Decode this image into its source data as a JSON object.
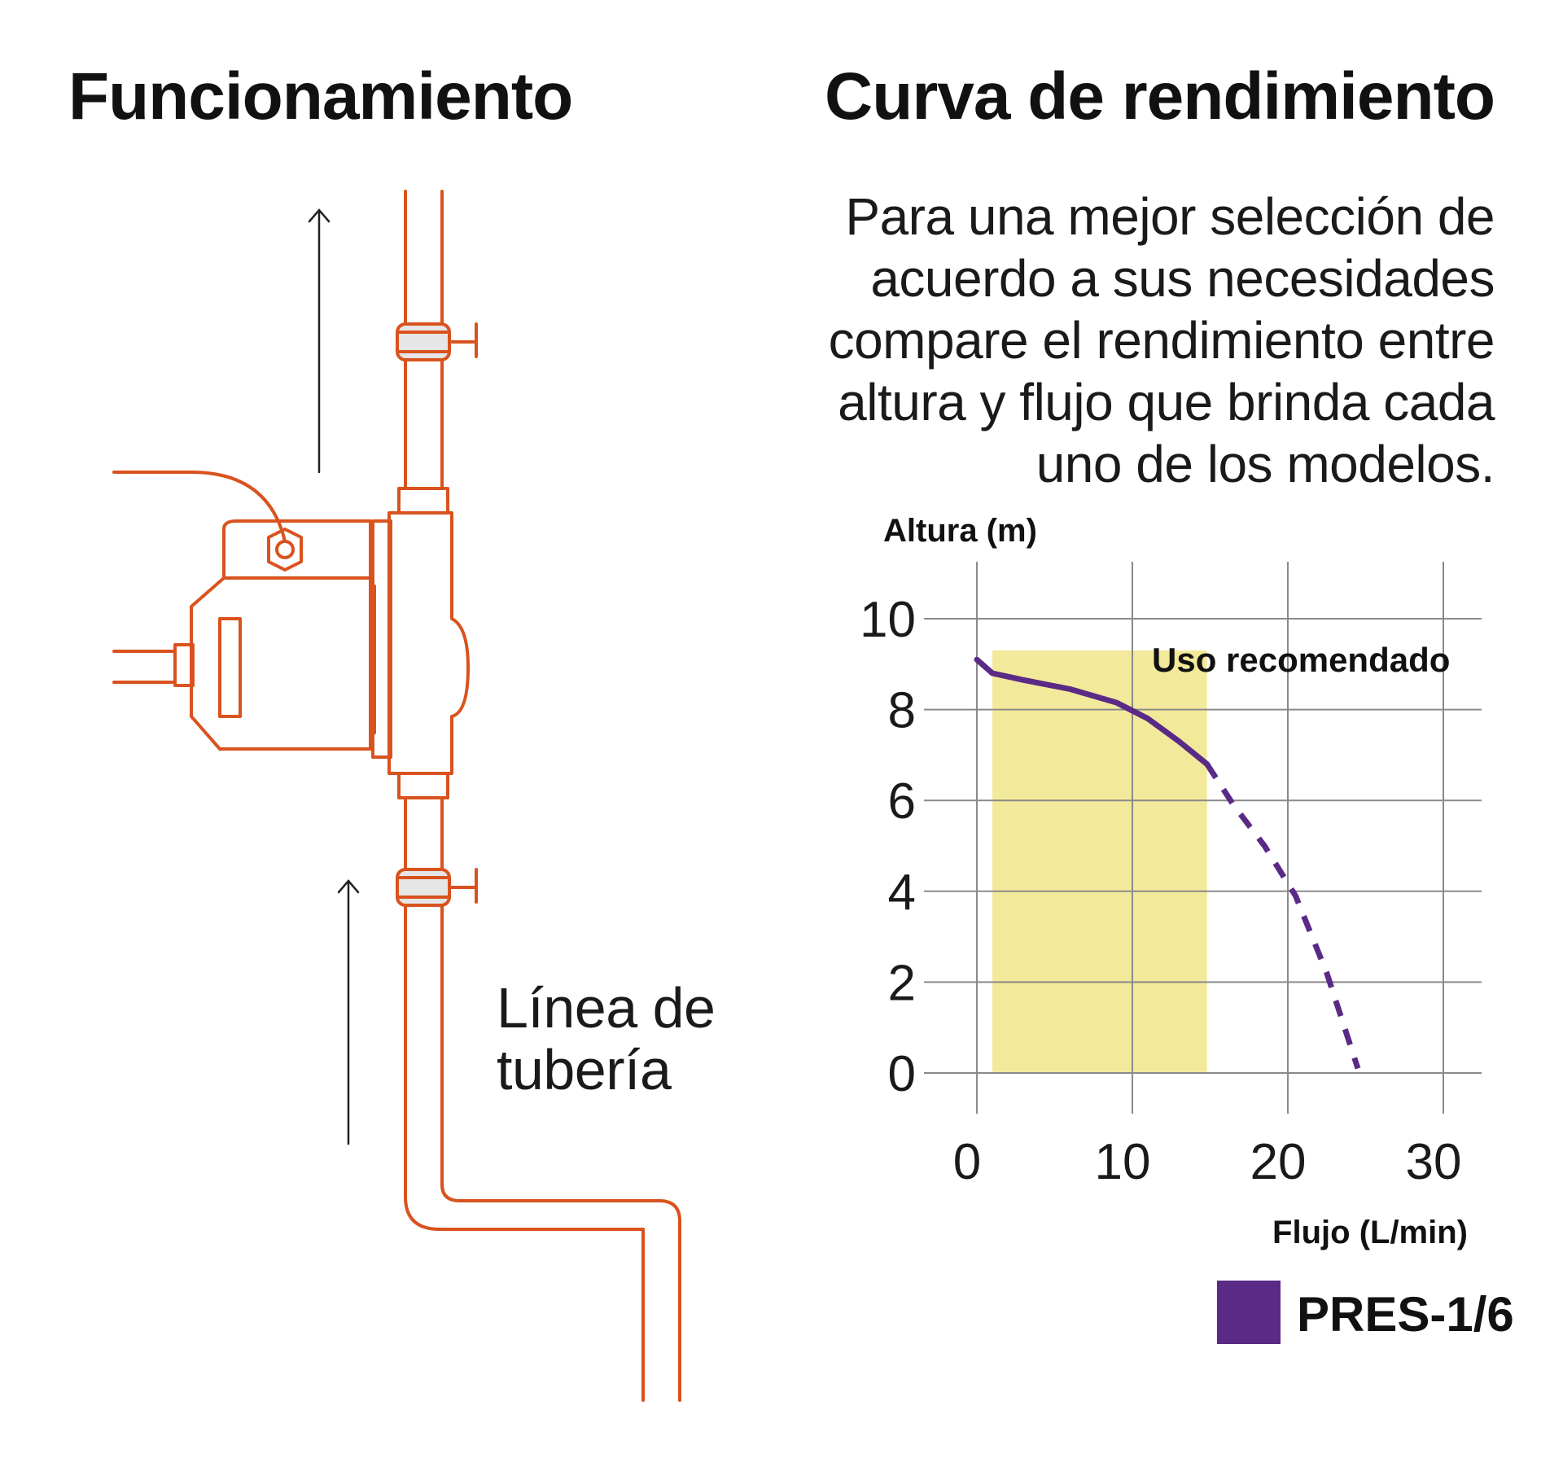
{
  "left_panel": {
    "title": "Funcionamiento",
    "pipe_label_lines": [
      "Línea de",
      "tubería"
    ]
  },
  "right_panel": {
    "title": "Curva de rendimiento",
    "description_lines": [
      "Para una mejor selección de",
      "acuerdo a sus necesidades",
      "compare el rendimiento entre",
      "altura y flujo que brinda cada",
      "uno de los modelos."
    ]
  },
  "colors": {
    "pipe": "#d9531e",
    "pipe_fill": "#e6e6e6",
    "curve": "#5b2a86",
    "recommended_zone": "#f3e99a",
    "grid": "#8a8a8a",
    "text": "#111111"
  },
  "chart_data": {
    "type": "line",
    "title": "",
    "xlabel": "Flujo (L/min)",
    "ylabel": "Altura (m)",
    "xlim": [
      0,
      30
    ],
    "ylim": [
      0,
      10
    ],
    "x_ticks": [
      "0",
      "10",
      "20",
      "30"
    ],
    "y_ticks": [
      "0",
      "2",
      "4",
      "6",
      "8",
      "10"
    ],
    "grid": true,
    "recommended_zone": {
      "label": "Uso recomendado",
      "x": [
        1,
        14.8
      ],
      "y": [
        0,
        9.3
      ]
    },
    "series": [
      {
        "name": "PRES-1/6",
        "color": "#5b2a86",
        "solid_x": [
          0,
          1,
          3,
          6,
          9,
          11,
          13,
          14.8
        ],
        "solid_y": [
          9.1,
          8.8,
          8.65,
          8.45,
          8.15,
          7.8,
          7.3,
          6.8
        ],
        "dashed_x": [
          14.8,
          16.5,
          18.5,
          20.5,
          22.5,
          24.5
        ],
        "dashed_y": [
          6.8,
          5.9,
          5.0,
          3.9,
          2.2,
          0.1
        ]
      }
    ],
    "legend": {
      "placement": "bottom-right",
      "entries": [
        "PRES-1/6"
      ]
    }
  }
}
